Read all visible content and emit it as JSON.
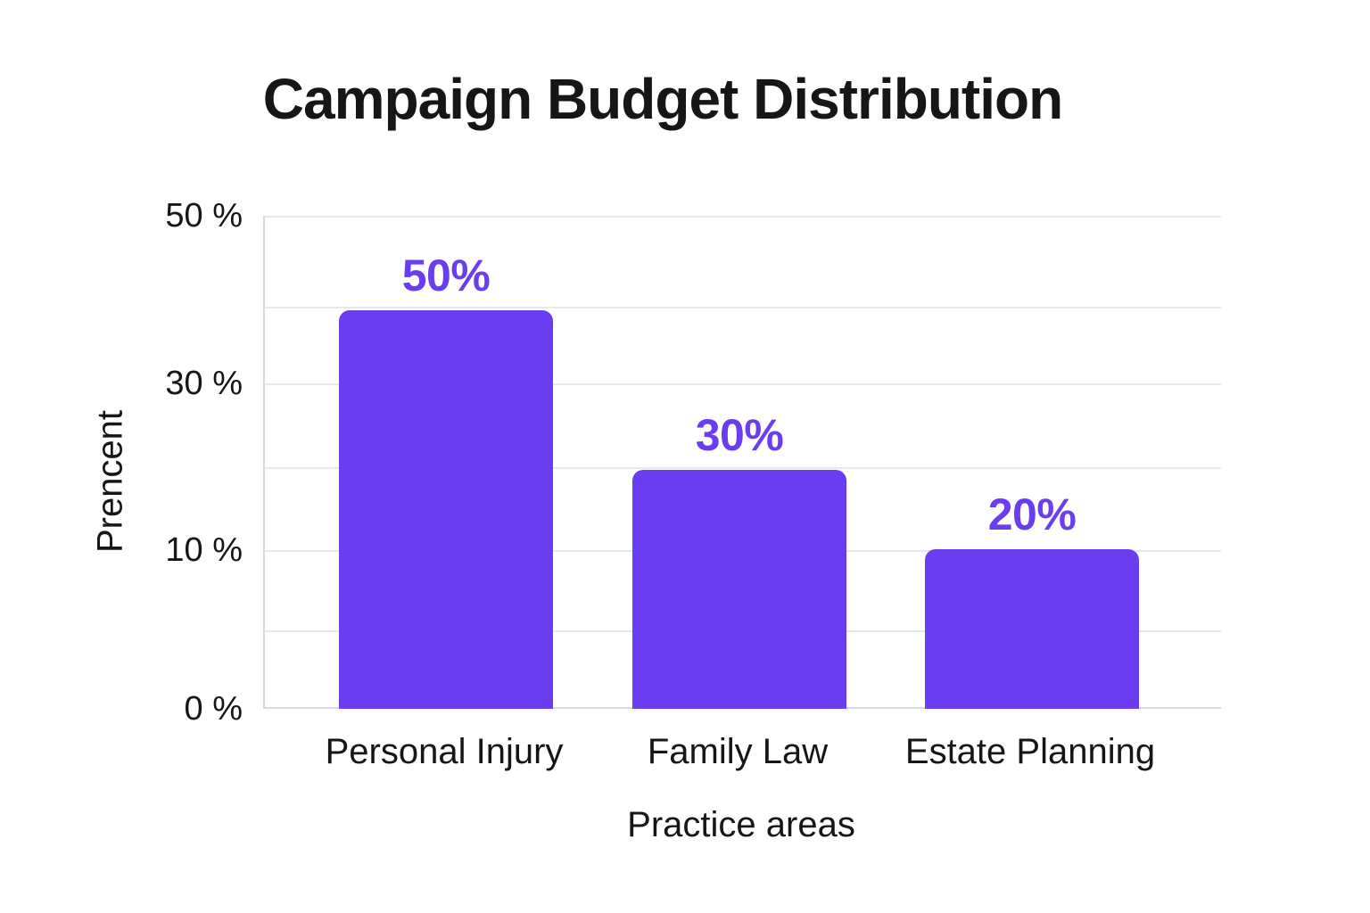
{
  "page": {
    "background": "#ffffff"
  },
  "colors": {
    "accent": "#6A3EF0",
    "text": "#161616",
    "gridline": "#e6e7ef",
    "axis_line": "#d7d9e4"
  },
  "chart_data": {
    "type": "bar",
    "title": "Campaign Budget Distribution",
    "xlabel": "Practice areas",
    "ylabel": "Prencent",
    "categories": [
      "Personal Injury",
      "Family Law",
      "Estate Planning"
    ],
    "values": [
      50,
      30,
      20
    ],
    "bar_value_labels": [
      "50%",
      "30%",
      "20%"
    ],
    "y_tick_labels": [
      "50 %",
      "30 %",
      "10 %",
      "0 %"
    ],
    "ylim": [
      0,
      50
    ],
    "grid": true,
    "legend": false,
    "bar_color": "#6A3EF0",
    "value_label_color": "#6A3EF0"
  }
}
